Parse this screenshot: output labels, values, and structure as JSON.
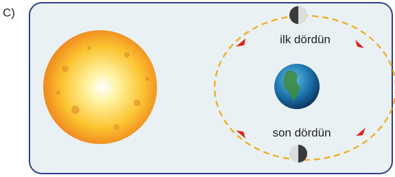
{
  "label": "C)",
  "moons": [
    {
      "label": "ilk dördün"
    },
    {
      "label": "son dördün"
    }
  ]
}
